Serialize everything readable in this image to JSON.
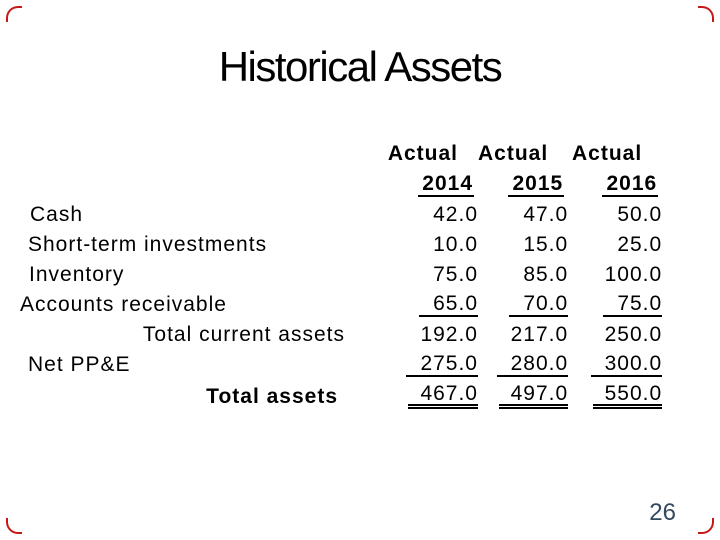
{
  "slide": {
    "title": "Historical Assets",
    "page_number": "26",
    "colors": {
      "background": "#FFFFFF",
      "text": "#000000",
      "border_accent": "#C00000",
      "page_number": "#33495E"
    }
  },
  "table": {
    "column_group_headers": [
      "Actual",
      "Actual",
      "Actual"
    ],
    "year_headers": [
      "2014",
      "2015",
      "2016"
    ],
    "rows": [
      {
        "label": "Cash",
        "indent": 30,
        "align": "left",
        "bold": false,
        "underline": "none",
        "values": [
          "42.0",
          "47.0",
          "50.0"
        ]
      },
      {
        "label": "Short-term investments",
        "indent": 28,
        "align": "left",
        "bold": false,
        "underline": "none",
        "values": [
          "10.0",
          "15.0",
          "25.0"
        ]
      },
      {
        "label": "Inventory",
        "indent": 29,
        "align": "left",
        "bold": false,
        "underline": "none",
        "values": [
          "75.0",
          "85.0",
          "100.0"
        ]
      },
      {
        "label": "Accounts receivable",
        "indent": 20,
        "align": "left",
        "bold": false,
        "underline": "single",
        "values": [
          "65.0",
          "70.0",
          "75.0"
        ]
      },
      {
        "label": "Total current assets",
        "indent": 0,
        "align": "right",
        "bold": false,
        "underline": "none",
        "values": [
          "192.0",
          "217.0",
          "250.0"
        ]
      },
      {
        "label": "Net PP&E",
        "indent": 28,
        "align": "left",
        "bold": false,
        "underline": "single",
        "values": [
          "275.0",
          "280.0",
          "300.0"
        ]
      },
      {
        "label": "Total assets",
        "indent": 0,
        "align": "right",
        "bold": true,
        "underline": "double",
        "values": [
          "467.0",
          "497.0",
          "550.0"
        ]
      }
    ]
  },
  "chart_data": {
    "type": "table",
    "title": "Historical Assets",
    "columns": [
      "Item",
      "Actual 2014",
      "Actual 2015",
      "Actual 2016"
    ],
    "rows": [
      [
        "Cash",
        42.0,
        47.0,
        50.0
      ],
      [
        "Short-term investments",
        10.0,
        15.0,
        25.0
      ],
      [
        "Inventory",
        75.0,
        85.0,
        100.0
      ],
      [
        "Accounts receivable",
        65.0,
        70.0,
        75.0
      ],
      [
        "Total current assets",
        192.0,
        217.0,
        250.0
      ],
      [
        "Net PP&E",
        275.0,
        280.0,
        300.0
      ],
      [
        "Total assets",
        467.0,
        497.0,
        550.0
      ]
    ]
  }
}
